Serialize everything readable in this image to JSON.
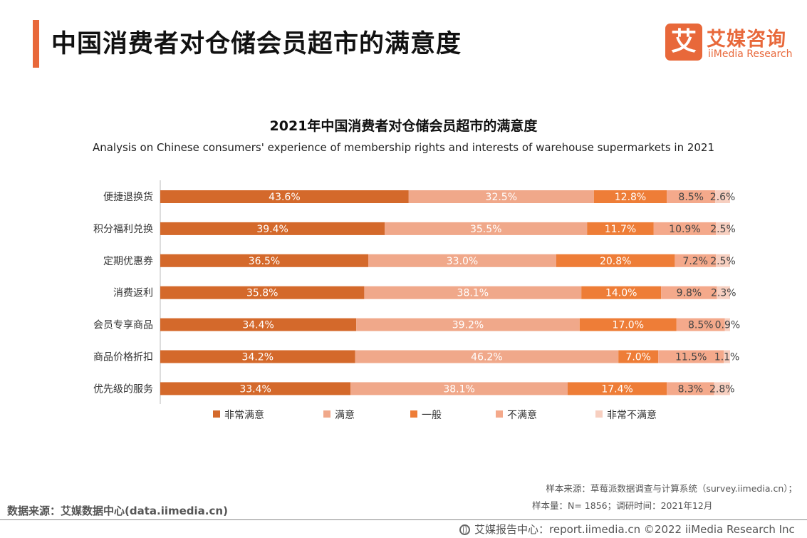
{
  "header": {
    "title": "中国消费者对仓储会员超市的满意度",
    "accent_color": "#e8683a"
  },
  "logo": {
    "mark": "艾",
    "name_cn": "艾媒咨询",
    "name_en": "iiMedia Research"
  },
  "chart_data": {
    "type": "bar",
    "orientation": "horizontal",
    "stacked": true,
    "title": "2021年中国消费者对仓储会员超市的满意度",
    "subtitle": "Analysis on Chinese consumers' experience of membership rights and interests of warehouse supermarkets in 2021",
    "categories": [
      "便捷退换货",
      "积分福利兑换",
      "定期优惠券",
      "消费返利",
      "会员专享商品",
      "商品价格折扣",
      "优先级的服务"
    ],
    "unit": "%",
    "xlim": [
      0,
      100
    ],
    "legend_position": "bottom",
    "grid": false,
    "series": [
      {
        "name": "非常满意",
        "color": "#d4692b",
        "label_color": "#ffffff",
        "values": [
          43.6,
          39.4,
          36.5,
          35.8,
          34.4,
          34.2,
          33.4
        ]
      },
      {
        "name": "满意",
        "color": "#f0a88a",
        "label_color": "#ffffff",
        "values": [
          32.5,
          35.5,
          33.0,
          38.1,
          39.2,
          46.2,
          38.1
        ]
      },
      {
        "name": "一般",
        "color": "#ee7d37",
        "label_color": "#ffffff",
        "values": [
          12.8,
          11.7,
          20.8,
          14.0,
          17.0,
          7.0,
          17.4
        ]
      },
      {
        "name": "不满意",
        "color": "#f4a98b",
        "label_color": "#444444",
        "values": [
          8.5,
          10.9,
          7.2,
          9.8,
          8.5,
          11.5,
          8.3
        ]
      },
      {
        "name": "非常不满意",
        "color": "#f7cfc0",
        "label_color": "#444444",
        "values": [
          2.6,
          2.5,
          2.5,
          2.3,
          0.9,
          1.1,
          2.8
        ]
      }
    ]
  },
  "notes": {
    "sample_source": "样本来源：草莓派数据调查与计算系统（survey.iimedia.cn）；",
    "sample_size": "样本量：N= 1856；调研时间：2021年12月",
    "data_source": "数据来源：艾媒数据中心(data.iimedia.cn)",
    "footer": "艾媒报告中心：report.iimedia.cn   ©2022  iiMedia Research  Inc"
  }
}
